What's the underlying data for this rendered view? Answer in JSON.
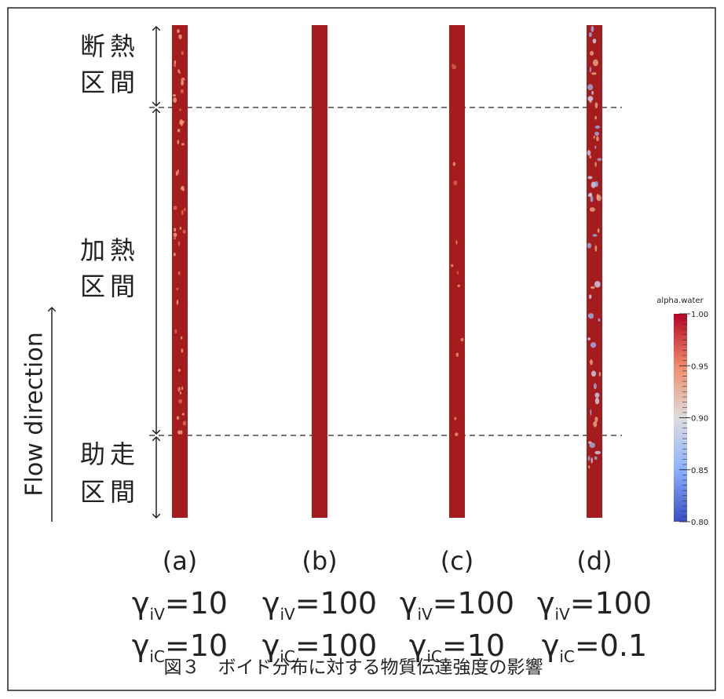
{
  "figure": {
    "sections": [
      {
        "line1": "断熱",
        "line2": "区間"
      },
      {
        "line1": "加熱",
        "line2": "区間"
      },
      {
        "line1": "助走",
        "line2": "区間"
      }
    ],
    "flow_label": "Flow direction",
    "panels": [
      {
        "label": "(a)",
        "symbol": "γ",
        "sub_v": "iV",
        "eq_v": "=10",
        "sub_c": "iC",
        "eq_c": "=10"
      },
      {
        "label": "(b)",
        "symbol": "γ",
        "sub_v": "iV",
        "eq_v": "=100",
        "sub_c": "iC",
        "eq_c": "=100"
      },
      {
        "label": "(c)",
        "symbol": "γ",
        "sub_v": "iV",
        "eq_v": "=100",
        "sub_c": "iC",
        "eq_c": "=10"
      },
      {
        "label": "(d)",
        "symbol": "γ",
        "sub_v": "iV",
        "eq_v": "=100",
        "sub_c": "iC",
        "eq_c": "=0.1"
      }
    ],
    "colorbar": {
      "title": "alpha.water",
      "ticks": [
        "1.00",
        "0.95",
        "0.90",
        "0.85",
        "0.80"
      ]
    },
    "caption": "図３　ボイド分布に対する物質伝達強度の影響"
  }
}
